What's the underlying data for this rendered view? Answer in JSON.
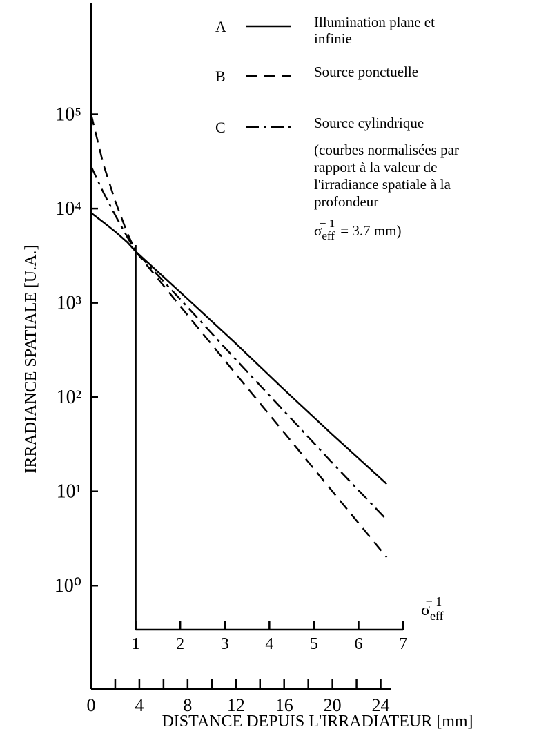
{
  "chart_data": {
    "type": "line",
    "ylabel": "IRRADIANCE SPATIALE [U.A.]",
    "xlabel": "DISTANCE DEPUIS L'IRRADIATEUR [mm]",
    "log_y": true,
    "xlim": [
      0,
      26.6
    ],
    "xticks": [
      0,
      4,
      8,
      12,
      16,
      20,
      24
    ],
    "xminor_ticks": [
      2,
      6,
      10,
      14,
      18,
      22
    ],
    "ylim": [
      0.08,
      1500000
    ],
    "yticks": [
      {
        "value": 1,
        "label": "10⁰"
      },
      {
        "value": 10,
        "label": "10¹"
      },
      {
        "value": 100,
        "label": "10²"
      },
      {
        "value": 1000,
        "label": "10³"
      },
      {
        "value": 10000,
        "label": "10⁴"
      },
      {
        "value": 100000,
        "label": "10⁵"
      }
    ],
    "x2lim": [
      0,
      7.2
    ],
    "x2ticks": [
      1,
      2,
      3,
      4,
      5,
      6,
      7
    ],
    "x2label": {
      "symbol": "σ",
      "sub": "eff",
      "sup": "− 1"
    },
    "x": [
      0,
      1,
      2,
      3,
      3.7,
      8,
      12,
      16,
      20,
      24.5
    ],
    "series": [
      {
        "name": "A",
        "description": "Illumination plane et infinie",
        "color": "#000000",
        "dash": "solid",
        "values": [
          9000,
          7200,
          5700,
          4400,
          3500,
          1100,
          370,
          120,
          40,
          12
        ]
      },
      {
        "name": "B",
        "description": "Source ponctuelle",
        "color": "#000000",
        "dash": "dashed",
        "values": [
          100000,
          30000,
          12000,
          5500,
          3500,
          740,
          176,
          42,
          10,
          2
        ]
      },
      {
        "name": "C",
        "description": "Source cylindrique",
        "color": "#000000",
        "dash": "dashdot",
        "values": [
          28000,
          15000,
          8500,
          5000,
          3500,
          900,
          250,
          71,
          20,
          5
        ]
      }
    ],
    "note": {
      "text": "(courbes normalisées par rapport à la valeur de l'irradiance spatiale à la profondeur",
      "symbol": "σ",
      "sub": "eff",
      "sup": "− 1",
      "value": "= 3.7 mm)"
    }
  }
}
